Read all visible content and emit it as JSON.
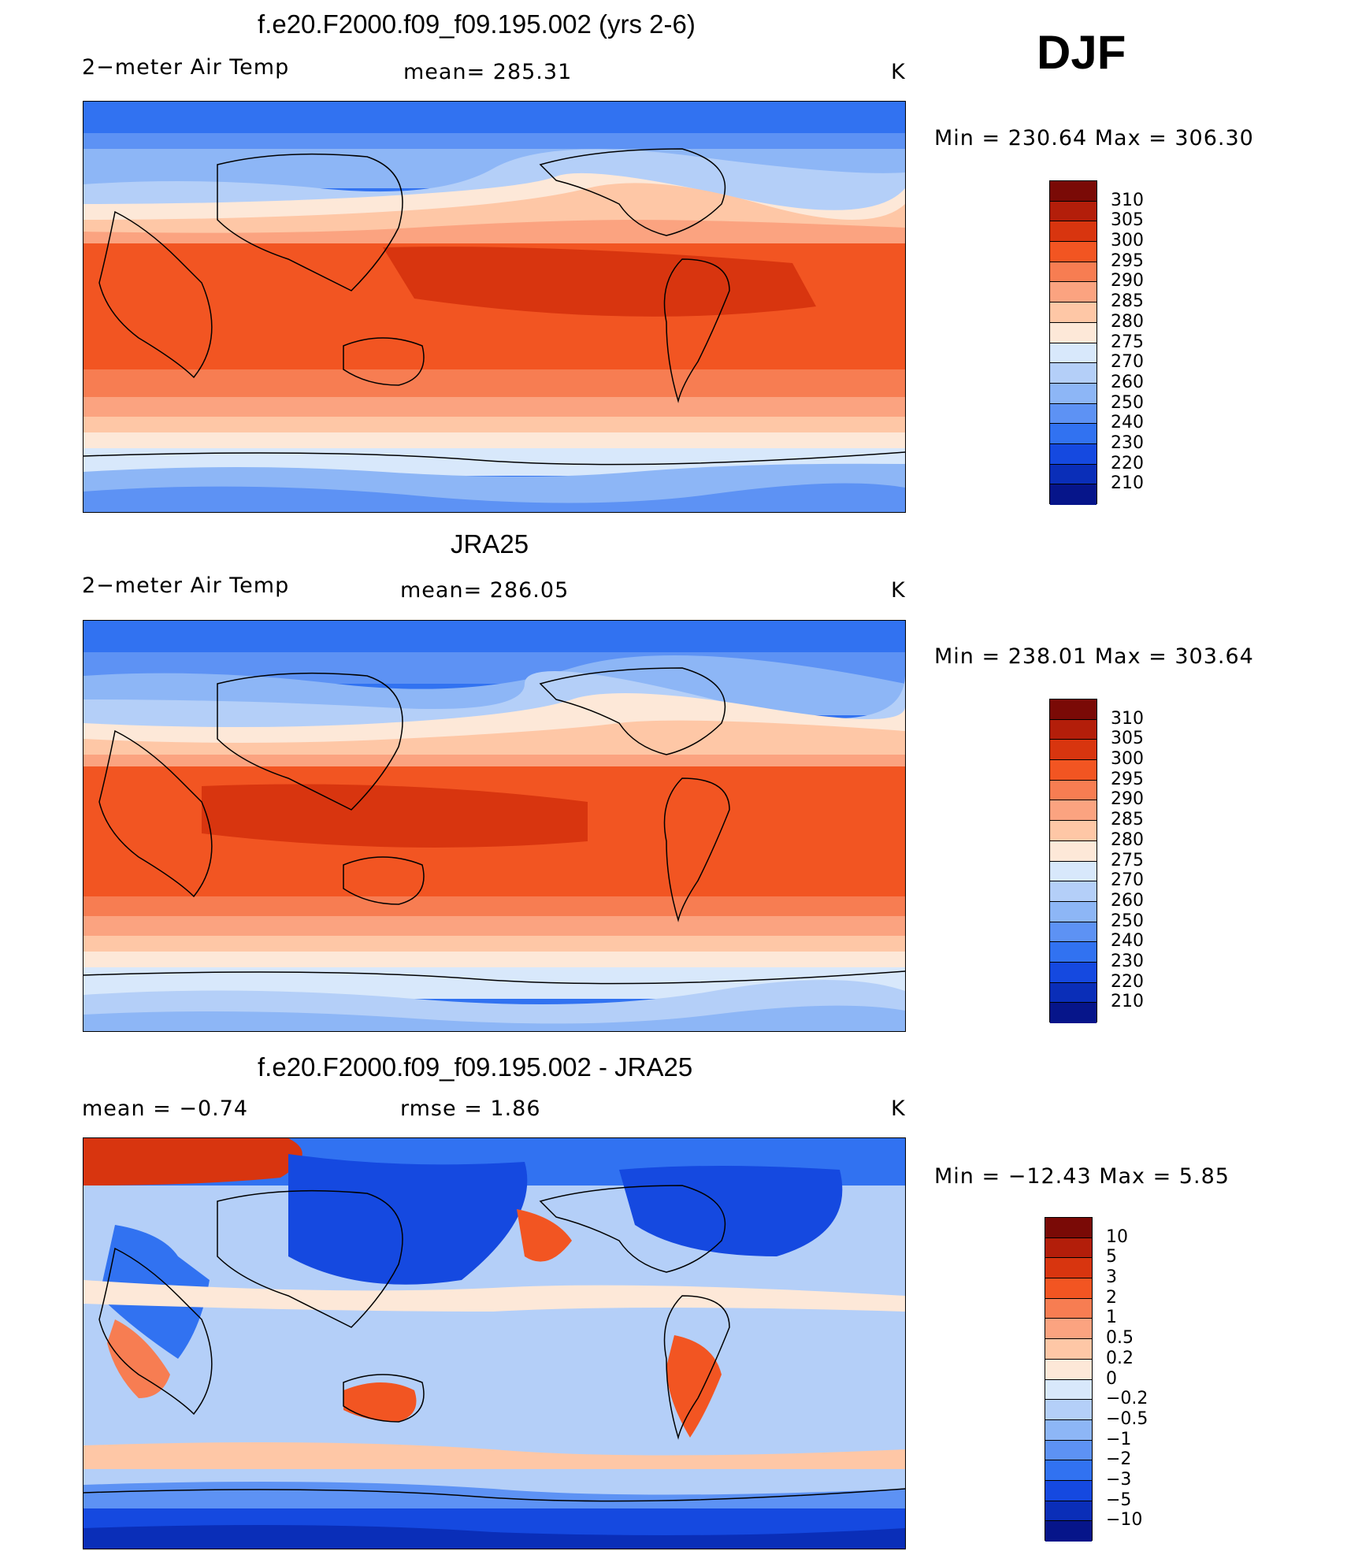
{
  "season": "DJF",
  "units": "K",
  "panels": [
    {
      "title": "f.e20.F2000.f09_f09.195.002 (yrs 2-6)",
      "left_label": "2−meter Air Temp",
      "center_label": "mean=  285.31",
      "right_label": "K",
      "minmax": "Min  =  230.64  Max  =  306.30"
    },
    {
      "title": "JRA25",
      "left_label": "2−meter Air Temp",
      "center_label": "mean=  286.05",
      "right_label": "K",
      "minmax": "Min  =  238.01  Max  =  303.64"
    },
    {
      "title": "f.e20.F2000.f09_f09.195.002 - JRA25",
      "left_label": "mean  =     −0.74",
      "center_label": "rmse  =      1.86",
      "right_label": "K",
      "minmax": "Min  =  −12.43  Max  =      5.85"
    }
  ],
  "colorbar_abs": {
    "labels": [
      "310",
      "305",
      "300",
      "295",
      "290",
      "285",
      "280",
      "275",
      "270",
      "260",
      "250",
      "240",
      "230",
      "220",
      "210"
    ],
    "colors": [
      "#7a0a06",
      "#b31e0a",
      "#d8350f",
      "#f25522",
      "#f77d52",
      "#fba380",
      "#fec7a6",
      "#fde8d8",
      "#d8e8fb",
      "#b4cff8",
      "#8db6f6",
      "#5d92f4",
      "#3172f1",
      "#1549e0",
      "#0a2eb8",
      "#06158a"
    ]
  },
  "colorbar_diff": {
    "labels": [
      "10",
      "5",
      "3",
      "2",
      "1",
      "0.5",
      "0.2",
      "0",
      "−0.2",
      "−0.5",
      "−1",
      "−2",
      "−3",
      "−5",
      "−10"
    ],
    "colors": [
      "#7a0a06",
      "#b31e0a",
      "#d8350f",
      "#f25522",
      "#f77d52",
      "#fba380",
      "#fec7a6",
      "#fde8d8",
      "#d8e8fb",
      "#b4cff8",
      "#8db6f6",
      "#5d92f4",
      "#3172f1",
      "#1549e0",
      "#0a2eb8",
      "#06158a"
    ]
  }
}
